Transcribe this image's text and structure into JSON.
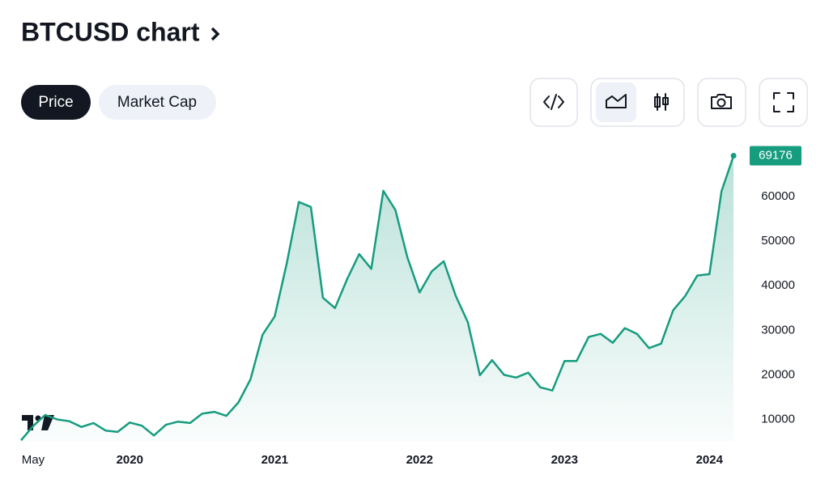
{
  "header": {
    "title": "BTCUSD chart"
  },
  "tabs": [
    "Price",
    "Market Cap"
  ],
  "chart_data": {
    "type": "line",
    "categories": [
      null,
      "May",
      null,
      null,
      null,
      null,
      null,
      null,
      null,
      "2020",
      null,
      null,
      null,
      null,
      null,
      null,
      null,
      null,
      null,
      null,
      null,
      "2021",
      null,
      null,
      null,
      null,
      null,
      null,
      null,
      null,
      null,
      null,
      null,
      "2022",
      null,
      null,
      null,
      null,
      null,
      null,
      null,
      null,
      null,
      null,
      null,
      "2023",
      null,
      null,
      null,
      null,
      null,
      null,
      null,
      null,
      null,
      null,
      null,
      "2024",
      null,
      null
    ],
    "values": [
      5300,
      8500,
      11000,
      10000,
      9600,
      8300,
      9200,
      7500,
      7200,
      9300,
      8600,
      6400,
      8800,
      9500,
      9200,
      11300,
      11700,
      10800,
      13800,
      19000,
      29000,
      33100,
      45000,
      58800,
      57700,
      37300,
      35000,
      41500,
      47100,
      43800,
      61300,
      57000,
      46300,
      38500,
      43200,
      45500,
      37700,
      31800,
      19900,
      23300,
      20000,
      19400,
      20500,
      17200,
      16500,
      23100,
      23100,
      28500,
      29200,
      27200,
      30500,
      29200,
      26000,
      27000,
      34500,
      37700,
      42300,
      42600,
      61200,
      69176
    ],
    "color": "#169c7f",
    "ylim": [
      5000,
      72000
    ],
    "yticks": [
      10000,
      20000,
      30000,
      40000,
      50000,
      60000
    ],
    "grid": false
  }
}
